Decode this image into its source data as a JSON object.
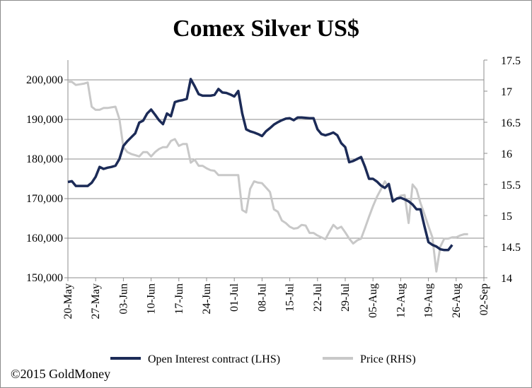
{
  "chart_data": {
    "type": "line",
    "title": "Comex Silver US$",
    "x": [
      "20-May",
      "27-May",
      "03-Jun",
      "10-Jun",
      "17-Jun",
      "24-Jun",
      "01-Jul",
      "08-Jul",
      "15-Jul",
      "22-Jul",
      "29-Jul",
      "05-Aug",
      "12-Aug",
      "19-Aug",
      "26-Aug",
      "02-Sep"
    ],
    "xlim": [
      0,
      105
    ],
    "y_left": {
      "lim": [
        150000,
        205000
      ],
      "ticks": [
        150000,
        160000,
        170000,
        180000,
        190000,
        200000
      ],
      "tick_labels": [
        "150,000",
        "160,000",
        "170,000",
        "180,000",
        "190,000",
        "200,000"
      ]
    },
    "y_right": {
      "lim": [
        14,
        17.5
      ],
      "ticks": [
        14,
        14.5,
        15,
        15.5,
        16,
        16.5,
        17,
        17.5
      ],
      "tick_labels": [
        "14",
        "14.5",
        "15",
        "15.5",
        "16",
        "16.5",
        "17",
        "17.5"
      ]
    },
    "gridlines": "horizontal",
    "legend_position": "bottom",
    "series": [
      {
        "name": "Open Interest contract (LHS)",
        "axis": "left",
        "color": "#1c2b57",
        "points": [
          [
            0,
            174200
          ],
          [
            1,
            174400
          ],
          [
            2,
            173200
          ],
          [
            3,
            173200
          ],
          [
            4,
            173200
          ],
          [
            5,
            173200
          ],
          [
            6,
            174000
          ],
          [
            7,
            175500
          ],
          [
            8,
            178000
          ],
          [
            9,
            177500
          ],
          [
            10,
            177800
          ],
          [
            11,
            178000
          ],
          [
            12,
            178300
          ],
          [
            13,
            180000
          ],
          [
            14,
            183300
          ],
          [
            15,
            184500
          ],
          [
            16,
            185500
          ],
          [
            17,
            186500
          ],
          [
            18,
            189200
          ],
          [
            19,
            189700
          ],
          [
            20,
            191500
          ],
          [
            21,
            192500
          ],
          [
            22,
            191200
          ],
          [
            23,
            189800
          ],
          [
            24,
            188800
          ],
          [
            25,
            191500
          ],
          [
            26,
            190800
          ],
          [
            27,
            194400
          ],
          [
            28,
            194700
          ],
          [
            29,
            194900
          ],
          [
            30,
            195200
          ],
          [
            31,
            200200
          ],
          [
            32,
            198400
          ],
          [
            33,
            196400
          ],
          [
            34,
            196000
          ],
          [
            35,
            196000
          ],
          [
            36,
            196000
          ],
          [
            37,
            196200
          ],
          [
            38,
            197700
          ],
          [
            39,
            196800
          ],
          [
            40,
            196700
          ],
          [
            41,
            196300
          ],
          [
            42,
            195800
          ],
          [
            43,
            197200
          ],
          [
            44,
            191500
          ],
          [
            45,
            187500
          ],
          [
            46,
            187000
          ],
          [
            47,
            186700
          ],
          [
            48,
            186300
          ],
          [
            49,
            185800
          ],
          [
            50,
            187000
          ],
          [
            51,
            187800
          ],
          [
            52,
            188700
          ],
          [
            53,
            189300
          ],
          [
            54,
            189800
          ],
          [
            55,
            190200
          ],
          [
            56,
            190300
          ],
          [
            57,
            189800
          ],
          [
            58,
            190500
          ],
          [
            59,
            190500
          ],
          [
            60,
            190400
          ],
          [
            61,
            190300
          ],
          [
            62,
            190300
          ],
          [
            63,
            187500
          ],
          [
            64,
            186300
          ],
          [
            65,
            186000
          ],
          [
            66,
            186300
          ],
          [
            67,
            186700
          ],
          [
            68,
            186000
          ],
          [
            69,
            184000
          ],
          [
            70,
            183000
          ],
          [
            71,
            179200
          ],
          [
            72,
            179500
          ],
          [
            73,
            180000
          ],
          [
            74,
            180500
          ],
          [
            75,
            178000
          ],
          [
            76,
            175000
          ],
          [
            77,
            175000
          ],
          [
            78,
            174300
          ],
          [
            79,
            173300
          ],
          [
            80,
            172700
          ],
          [
            81,
            173700
          ],
          [
            82,
            169300
          ],
          [
            83,
            170000
          ],
          [
            84,
            170200
          ],
          [
            85,
            169800
          ],
          [
            86,
            169300
          ],
          [
            87,
            168500
          ],
          [
            88,
            167300
          ],
          [
            89,
            167300
          ],
          [
            90,
            163000
          ],
          [
            91,
            159000
          ],
          [
            92,
            158300
          ],
          [
            93,
            157900
          ],
          [
            94,
            157200
          ],
          [
            95,
            157000
          ],
          [
            96,
            157000
          ],
          [
            97,
            158300
          ]
        ]
      },
      {
        "name": "Price (RHS)",
        "axis": "right",
        "color": "#c8c8c8",
        "points": [
          [
            0,
            17.15
          ],
          [
            1,
            17.15
          ],
          [
            2,
            17.1
          ],
          [
            3,
            17.11
          ],
          [
            4,
            17.12
          ],
          [
            5,
            17.14
          ],
          [
            6,
            16.75
          ],
          [
            7,
            16.7
          ],
          [
            8,
            16.7
          ],
          [
            9,
            16.73
          ],
          [
            10,
            16.73
          ],
          [
            11,
            16.74
          ],
          [
            12,
            16.75
          ],
          [
            13,
            16.55
          ],
          [
            14,
            16.1
          ],
          [
            15,
            16.02
          ],
          [
            16,
            15.99
          ],
          [
            17,
            15.97
          ],
          [
            18,
            15.95
          ],
          [
            19,
            16.02
          ],
          [
            20,
            16.02
          ],
          [
            21,
            15.95
          ],
          [
            22,
            16.02
          ],
          [
            23,
            16.07
          ],
          [
            24,
            16.1
          ],
          [
            25,
            16.1
          ],
          [
            26,
            16.2
          ],
          [
            27,
            16.23
          ],
          [
            28,
            16.12
          ],
          [
            29,
            16.15
          ],
          [
            30,
            16.15
          ],
          [
            31,
            15.85
          ],
          [
            32,
            15.9
          ],
          [
            33,
            15.8
          ],
          [
            34,
            15.8
          ],
          [
            35,
            15.76
          ],
          [
            36,
            15.73
          ],
          [
            37,
            15.72
          ],
          [
            38,
            15.65
          ],
          [
            39,
            15.65
          ],
          [
            40,
            15.65
          ],
          [
            41,
            15.65
          ],
          [
            42,
            15.65
          ],
          [
            43,
            15.65
          ],
          [
            44,
            15.09
          ],
          [
            45,
            15.05
          ],
          [
            46,
            15.43
          ],
          [
            47,
            15.55
          ],
          [
            48,
            15.53
          ],
          [
            49,
            15.52
          ],
          [
            50,
            15.45
          ],
          [
            51,
            15.38
          ],
          [
            52,
            15.1
          ],
          [
            53,
            15.06
          ],
          [
            54,
            14.92
          ],
          [
            55,
            14.88
          ],
          [
            56,
            14.82
          ],
          [
            57,
            14.79
          ],
          [
            58,
            14.8
          ],
          [
            59,
            14.85
          ],
          [
            60,
            14.84
          ],
          [
            61,
            14.72
          ],
          [
            62,
            14.72
          ],
          [
            63,
            14.68
          ],
          [
            64,
            14.65
          ],
          [
            65,
            14.62
          ],
          [
            66,
            14.74
          ],
          [
            67,
            14.85
          ],
          [
            68,
            14.79
          ],
          [
            69,
            14.82
          ],
          [
            70,
            14.73
          ],
          [
            71,
            14.63
          ],
          [
            72,
            14.55
          ],
          [
            73,
            14.6
          ],
          [
            74,
            14.63
          ],
          [
            75,
            14.8
          ],
          [
            76,
            14.98
          ],
          [
            77,
            15.15
          ],
          [
            78,
            15.3
          ],
          [
            79,
            15.42
          ],
          [
            80,
            15.55
          ],
          [
            81,
            15.45
          ],
          [
            82,
            15.25
          ],
          [
            83,
            15.27
          ],
          [
            84,
            15.32
          ],
          [
            85,
            15.33
          ],
          [
            86,
            14.88
          ],
          [
            87,
            15.5
          ],
          [
            88,
            15.42
          ],
          [
            89,
            15.2
          ],
          [
            90,
            15.02
          ],
          [
            91,
            14.83
          ],
          [
            92,
            14.65
          ],
          [
            93,
            14.1
          ],
          [
            94,
            14.5
          ],
          [
            95,
            14.63
          ],
          [
            96,
            14.63
          ],
          [
            97,
            14.65
          ],
          [
            98,
            14.65
          ],
          [
            99,
            14.68
          ],
          [
            100,
            14.7
          ],
          [
            101,
            14.7
          ]
        ]
      }
    ],
    "footer": "©2015 GoldMoney"
  }
}
